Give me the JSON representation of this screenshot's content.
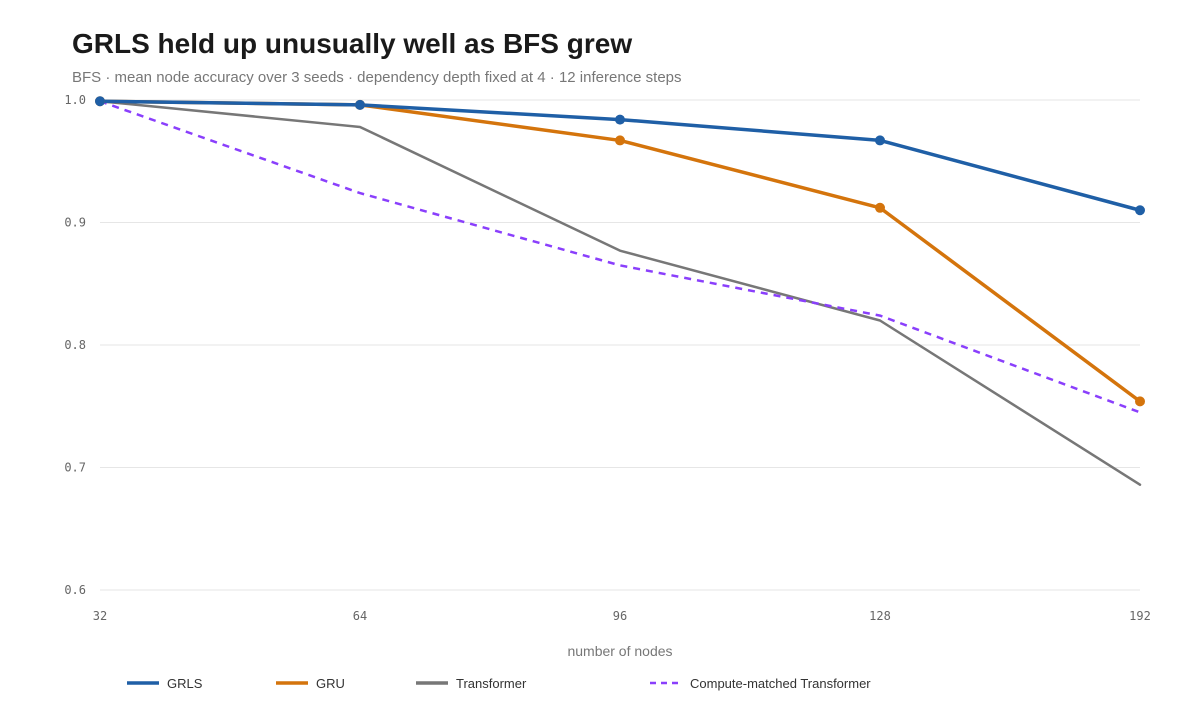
{
  "header": {
    "title": "GRLS held up unusually well as BFS grew",
    "subtitle": "BFS · mean node accuracy over 3 seeds · dependency depth fixed at 4 · 12 inference steps"
  },
  "chart_data": {
    "type": "line",
    "title": "GRLS held up unusually well as BFS grew",
    "subtitle": "BFS · mean node accuracy over 3 seeds · dependency depth fixed at 4 · 12 inference steps",
    "xlabel": "number of nodes",
    "ylabel": "",
    "categories": [
      "32",
      "64",
      "96",
      "128",
      "192"
    ],
    "y_ticks": [
      "0.6",
      "0.7",
      "0.8",
      "0.9",
      "1.0"
    ],
    "ylim": [
      0.6,
      1.0
    ],
    "grid": "horizontal",
    "legend_position": "bottom",
    "series": [
      {
        "name": "GRLS",
        "values": [
          0.999,
          0.996,
          0.984,
          0.967,
          0.91
        ],
        "color": "#1f5fa6",
        "dashed": false,
        "markers": true
      },
      {
        "name": "GRU",
        "values": [
          0.999,
          0.996,
          0.967,
          0.912,
          0.754
        ],
        "color": "#d4740c",
        "dashed": false,
        "markers": true
      },
      {
        "name": "Transformer",
        "values": [
          0.999,
          0.978,
          0.877,
          0.82,
          0.686
        ],
        "color": "#777777",
        "dashed": false,
        "markers": false
      },
      {
        "name": "Compute-matched Transformer",
        "values": [
          0.999,
          0.924,
          0.865,
          0.824,
          0.745
        ],
        "color": "#8a3ffc",
        "dashed": true,
        "markers": false
      }
    ]
  }
}
